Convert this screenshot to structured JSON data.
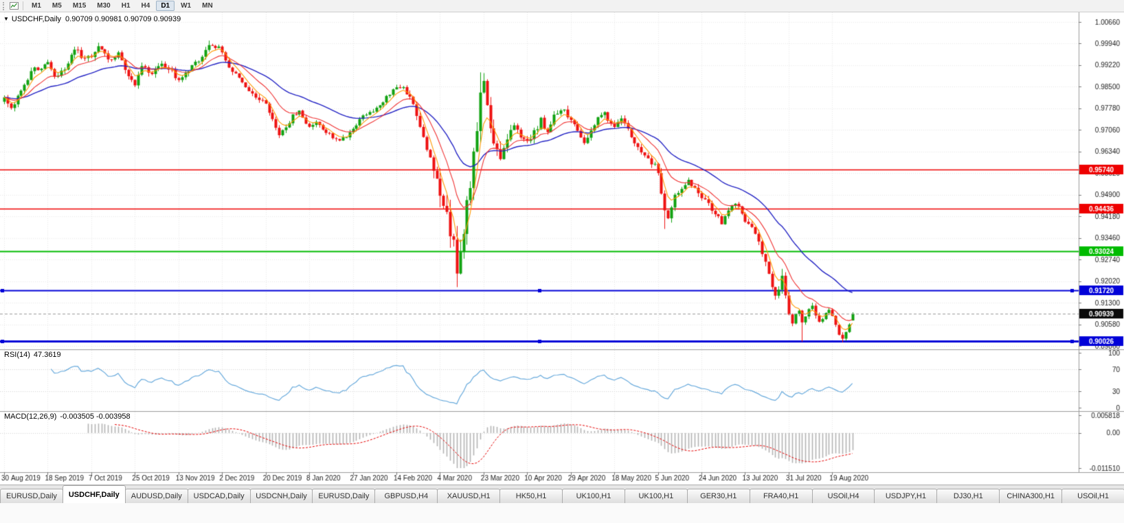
{
  "toolbar": {
    "timeframes": [
      "M1",
      "M5",
      "M15",
      "M30",
      "H1",
      "H4",
      "D1",
      "W1",
      "MN"
    ],
    "active": "D1"
  },
  "chart_header": {
    "collapse_icon": "▼",
    "symbol": "USDCHF,Daily",
    "ohlc": "0.90709 0.90981 0.90709 0.90939"
  },
  "price_axis": {
    "top_value": 1.0066,
    "bottom_value": 0.8986,
    "labels": [
      "1.00660",
      "0.99940",
      "0.99220",
      "0.98500",
      "0.97780",
      "0.97060",
      "0.96340",
      "0.95620",
      "0.94900",
      "0.94180",
      "0.93460",
      "0.92740",
      "0.92020",
      "0.91300",
      "0.90580",
      "0.89860"
    ]
  },
  "hlines": [
    {
      "value": 0.9574,
      "label": "0.95740",
      "color": "#ee0000",
      "width": 1.5
    },
    {
      "value": 0.94436,
      "label": "0.94436",
      "color": "#ee0000",
      "width": 1.5
    },
    {
      "value": 0.93024,
      "label": "0.93024",
      "color": "#00bb00",
      "width": 2
    },
    {
      "value": 0.9172,
      "label": "0.91720",
      "color": "#0000d8",
      "width": 2,
      "handles": true
    },
    {
      "value": 0.90026,
      "label": "0.90026",
      "color": "#0000d8",
      "width": 3,
      "handles": true
    }
  ],
  "bid": {
    "value": 0.90939,
    "label": "0.90939",
    "badge_bg": "#0a0a0a",
    "line_color": "#999999"
  },
  "rsi_panel": {
    "name": "RSI(14)",
    "value": "47.3619",
    "axis_labels": [
      {
        "label": "100",
        "value": 100
      },
      {
        "label": "70",
        "value": 70
      },
      {
        "label": "30",
        "value": 30
      },
      {
        "label": "0",
        "value": 0
      }
    ],
    "level_lines": [
      70,
      30
    ],
    "line_color": "#66a9dc"
  },
  "macd_panel": {
    "name": "MACD(12,26,9)",
    "values": "-0.003505 -0.003958",
    "axis_labels": [
      {
        "label": "0.005818",
        "value": 0.005818
      },
      {
        "label": "0.00",
        "value": 0
      },
      {
        "label": "-0.011510",
        "value": -0.01151
      }
    ],
    "histogram_color": "#b3b3b3",
    "signal_color": "#e60000"
  },
  "date_axis": {
    "bars_per_tick": 13,
    "ticks": [
      "30 Aug 2019",
      "18 Sep 2019",
      "7 Oct 2019",
      "25 Oct 2019",
      "13 Nov 2019",
      "2 Dec 2019",
      "20 Dec 2019",
      "8 Jan 2020",
      "27 Jan 2020",
      "14 Feb 2020",
      "4 Mar 2020",
      "23 Mar 2020",
      "10 Apr 2020",
      "29 Apr 2020",
      "18 May 2020",
      "5 Jun 2020",
      "24 Jun 2020",
      "13 Jul 2020",
      "31 Jul 2020",
      "19 Aug 2020"
    ]
  },
  "tabs": [
    {
      "label": "EURUSD,Daily"
    },
    {
      "label": "USDCHF,Daily",
      "active": true
    },
    {
      "label": "AUDUSD,Daily"
    },
    {
      "label": "USDCAD,Daily"
    },
    {
      "label": "USDCNH,Daily"
    },
    {
      "label": "EURUSD,Daily"
    },
    {
      "label": "GBPUSD,H4"
    },
    {
      "label": "XAUUSD,H1"
    },
    {
      "label": "HK50,H1"
    },
    {
      "label": "UK100,H1"
    },
    {
      "label": "UK100,H1"
    },
    {
      "label": "GER30,H1"
    },
    {
      "label": "FRA40,H1"
    },
    {
      "label": "USOil,H4"
    },
    {
      "label": "USDJPY,H1"
    },
    {
      "label": "DJ30,H1"
    },
    {
      "label": "CHINA300,H1"
    },
    {
      "label": "USOil,H1"
    }
  ],
  "chart_data": {
    "type": "candlestick",
    "symbol": "USDCHF",
    "timeframe": "Daily",
    "bars": 254,
    "seed": 987654321,
    "up_color": "#11a211",
    "down_color": "#ee1111",
    "last_bar": {
      "open": 0.90709,
      "high": 0.90981,
      "low": 0.90709,
      "close": 0.90939
    },
    "close_anchors": [
      [
        0,
        0.9815
      ],
      [
        2,
        0.978
      ],
      [
        5,
        0.983
      ],
      [
        8,
        0.99
      ],
      [
        11,
        0.9918
      ],
      [
        13,
        0.9935
      ],
      [
        15,
        0.9878
      ],
      [
        18,
        0.9905
      ],
      [
        21,
        0.9978
      ],
      [
        24,
        0.9938
      ],
      [
        26,
        0.9955
      ],
      [
        28,
        0.9988
      ],
      [
        31,
        0.9938
      ],
      [
        34,
        0.9958
      ],
      [
        37,
        0.989
      ],
      [
        39,
        0.9862
      ],
      [
        41,
        0.992
      ],
      [
        44,
        0.9895
      ],
      [
        47,
        0.9928
      ],
      [
        50,
        0.9898
      ],
      [
        52,
        0.9872
      ],
      [
        55,
        0.9905
      ],
      [
        58,
        0.994
      ],
      [
        61,
        0.9992
      ],
      [
        63,
        0.9983
      ],
      [
        65,
        0.9972
      ],
      [
        67,
        0.9918
      ],
      [
        70,
        0.9873
      ],
      [
        73,
        0.9838
      ],
      [
        76,
        0.9812
      ],
      [
        78,
        0.9795
      ],
      [
        80,
        0.9738
      ],
      [
        82,
        0.9683
      ],
      [
        84,
        0.9718
      ],
      [
        86,
        0.9752
      ],
      [
        88,
        0.9768
      ],
      [
        91,
        0.9712
      ],
      [
        93,
        0.9738
      ],
      [
        96,
        0.9698
      ],
      [
        99,
        0.9672
      ],
      [
        102,
        0.9688
      ],
      [
        104,
        0.9712
      ],
      [
        107,
        0.9752
      ],
      [
        110,
        0.9772
      ],
      [
        113,
        0.9802
      ],
      [
        116,
        0.9842
      ],
      [
        118,
        0.9852
      ],
      [
        120,
        0.9832
      ],
      [
        122,
        0.9788
      ],
      [
        124,
        0.9718
      ],
      [
        126,
        0.9652
      ],
      [
        128,
        0.9578
      ],
      [
        130,
        0.9488
      ],
      [
        132,
        0.9408
      ],
      [
        134,
        0.9328
      ],
      [
        135,
        0.9255
      ],
      [
        136,
        0.9292
      ],
      [
        137,
        0.9378
      ],
      [
        138,
        0.9452
      ],
      [
        139,
        0.9522
      ],
      [
        140,
        0.9608
      ],
      [
        141,
        0.9718
      ],
      [
        142,
        0.9832
      ],
      [
        143,
        0.9862
      ],
      [
        144,
        0.9788
      ],
      [
        145,
        0.9722
      ],
      [
        146,
        0.9652
      ],
      [
        148,
        0.9598
      ],
      [
        150,
        0.9678
      ],
      [
        152,
        0.9728
      ],
      [
        154,
        0.9688
      ],
      [
        156,
        0.9658
      ],
      [
        158,
        0.9698
      ],
      [
        160,
        0.9738
      ],
      [
        162,
        0.9698
      ],
      [
        164,
        0.9752
      ],
      [
        166,
        0.9778
      ],
      [
        169,
        0.9742
      ],
      [
        171,
        0.9698
      ],
      [
        173,
        0.9658
      ],
      [
        175,
        0.9712
      ],
      [
        177,
        0.9742
      ],
      [
        179,
        0.9758
      ],
      [
        182,
        0.9712
      ],
      [
        184,
        0.9738
      ],
      [
        186,
        0.9708
      ],
      [
        188,
        0.9662
      ],
      [
        190,
        0.9628
      ],
      [
        192,
        0.9602
      ],
      [
        194,
        0.9582
      ],
      [
        195,
        0.9558
      ],
      [
        196,
        0.9498
      ],
      [
        197,
        0.9438
      ],
      [
        198,
        0.9418
      ],
      [
        199,
        0.9458
      ],
      [
        200,
        0.9488
      ],
      [
        202,
        0.9512
      ],
      [
        204,
        0.9538
      ],
      [
        206,
        0.9508
      ],
      [
        208,
        0.9482
      ],
      [
        210,
        0.9458
      ],
      [
        212,
        0.9428
      ],
      [
        214,
        0.9398
      ],
      [
        216,
        0.9438
      ],
      [
        218,
        0.9462
      ],
      [
        220,
        0.9428
      ],
      [
        221,
        0.9402
      ],
      [
        223,
        0.9378
      ],
      [
        225,
        0.9328
      ],
      [
        227,
        0.9258
      ],
      [
        229,
        0.9188
      ],
      [
        230,
        0.9148
      ],
      [
        231,
        0.9178
      ],
      [
        232,
        0.9228
      ],
      [
        233,
        0.9158
      ],
      [
        234,
        0.9092
      ],
      [
        235,
        0.9058
      ],
      [
        236,
        0.9088
      ],
      [
        237,
        0.9108
      ],
      [
        238,
        0.9062
      ],
      [
        239,
        0.9078
      ],
      [
        240,
        0.9108
      ],
      [
        241,
        0.9122
      ],
      [
        242,
        0.9088
      ],
      [
        243,
        0.9062
      ],
      [
        244,
        0.9078
      ],
      [
        245,
        0.9098
      ],
      [
        246,
        0.9112
      ],
      [
        247,
        0.9082
      ],
      [
        248,
        0.9052
      ],
      [
        249,
        0.9028
      ],
      [
        250,
        0.9005
      ],
      [
        251,
        0.9032
      ],
      [
        252,
        0.9058
      ],
      [
        253,
        0.90939
      ]
    ],
    "volatility_anchors": [
      [
        0,
        0.0017
      ],
      [
        60,
        0.0017
      ],
      [
        80,
        0.0015
      ],
      [
        115,
        0.0013
      ],
      [
        125,
        0.0022
      ],
      [
        130,
        0.0055
      ],
      [
        136,
        0.0065
      ],
      [
        142,
        0.006
      ],
      [
        146,
        0.004
      ],
      [
        152,
        0.0025
      ],
      [
        170,
        0.0017
      ],
      [
        190,
        0.0015
      ],
      [
        196,
        0.003
      ],
      [
        200,
        0.0018
      ],
      [
        220,
        0.0014
      ],
      [
        228,
        0.0022
      ],
      [
        235,
        0.0018
      ],
      [
        245,
        0.0013
      ],
      [
        253,
        0.001
      ]
    ],
    "wick_highs": {
      "61": 1.0004,
      "142": 0.9898,
      "232": 0.9243
    },
    "wick_lows": {
      "135": 0.9182,
      "197": 0.9376,
      "238": 0.9,
      "250": 0.8998
    },
    "moving_averages": [
      {
        "type": "ema",
        "period": 34,
        "color": "#2222c4",
        "width": 1.4
      },
      {
        "type": "ema",
        "period": 13,
        "color": "#f03030",
        "width": 1.1
      },
      {
        "type": "ema",
        "period": 5,
        "color": "#ff9900",
        "width": 1.1
      }
    ],
    "indicators": [
      {
        "name": "RSI",
        "period": 14
      },
      {
        "name": "MACD",
        "fast": 12,
        "slow": 26,
        "signal": 9
      }
    ]
  }
}
